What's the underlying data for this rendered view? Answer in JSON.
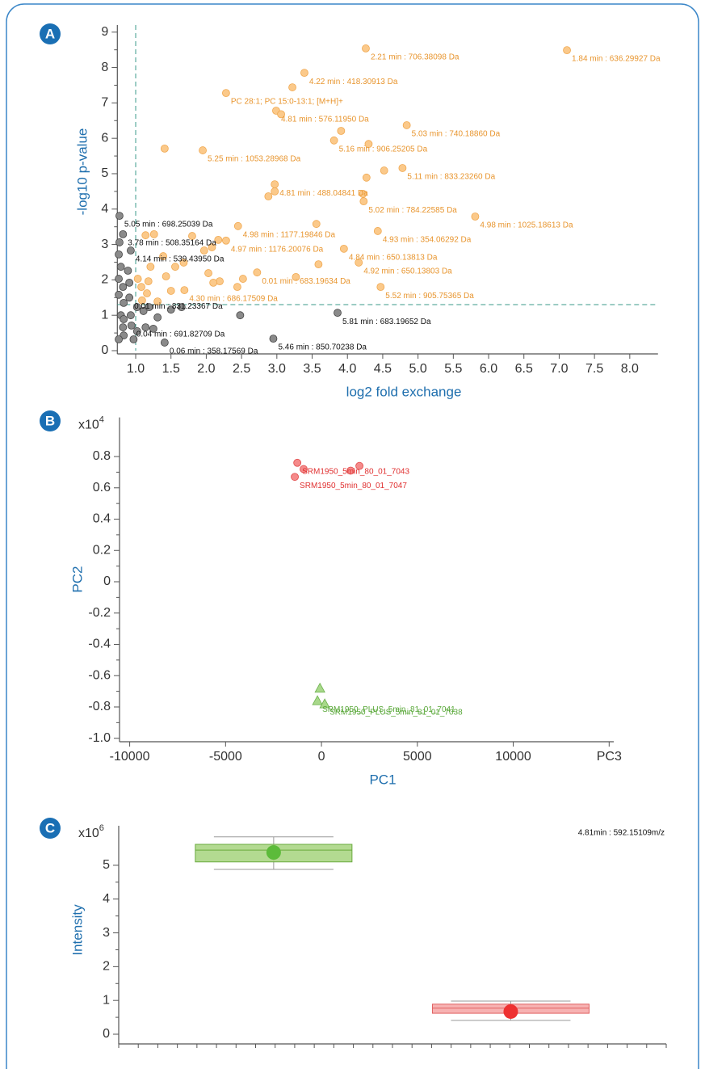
{
  "chart_data": [
    {
      "type": "scatter",
      "panel_label": "A",
      "xlabel": "log2 fold exchange",
      "ylabel": "-log10 p-value",
      "xlim": [
        0.74,
        8.4
      ],
      "ylim": [
        0,
        9.2
      ],
      "xticks": [
        {
          "value": 1,
          "label": "1.0"
        },
        1.5,
        {
          "value": 2,
          "label": "2.0"
        },
        2.5,
        {
          "value": 3,
          "label": "3.0"
        },
        3.5,
        {
          "value": 4,
          "label": "4.0"
        },
        4.5,
        {
          "value": 5,
          "label": "5.0"
        },
        5.5,
        {
          "value": 6,
          "label": "6.0"
        },
        6.5,
        {
          "value": 7,
          "label": "7.0"
        },
        7.5,
        {
          "value": 8,
          "label": "8.0"
        }
      ],
      "yticks": [
        0,
        1,
        2,
        3,
        4,
        5,
        6,
        7,
        8,
        9
      ],
      "thresholds": {
        "x": 1,
        "y": 1.3,
        "color": "#3a9a8a"
      },
      "series": [
        {
          "color": "#fbc98a",
          "stroke": "#f0a850",
          "label_color": "#e8952e",
          "marker": "circle",
          "x": [
            7.11,
            4.26,
            3.39,
            2.28,
            2.99,
            4.84,
            3.81,
            1.95,
            4.78,
            2.97,
            4.23,
            5.81,
            2.45,
            4.43,
            2.28,
            3.95,
            4.16,
            2.72,
            1.69,
            4.47,
            3.22,
            3.91,
            4.3,
            1.41,
            2.88,
            4.22,
            4.52,
            4.27,
            3.56,
            1.26,
            1.14,
            1.8,
            2.17,
            2.08,
            1.97,
            1.68,
            1.56,
            1.43,
            1.18,
            1.08,
            1.16,
            1.31,
            1.5,
            2.03,
            2.19,
            2.44,
            2.52,
            3.27,
            3.59,
            2.1,
            1.39,
            1.21,
            1.03,
            1.09,
            3.06,
            2.97
          ],
          "values": [
            8.49,
            8.54,
            7.85,
            7.28,
            6.78,
            6.37,
            5.94,
            5.66,
            5.16,
            4.7,
            4.22,
            3.79,
            3.52,
            3.38,
            3.11,
            2.88,
            2.49,
            2.21,
            1.71,
            1.8,
            7.44,
            6.21,
            5.84,
            5.71,
            4.36,
            4.43,
            5.09,
            4.89,
            3.58,
            3.29,
            3.26,
            3.24,
            3.13,
            2.92,
            2.83,
            2.49,
            2.37,
            2.1,
            1.96,
            1.8,
            1.62,
            1.39,
            1.69,
            2.19,
            1.96,
            1.8,
            2.03,
            2.08,
            2.44,
            1.92,
            2.67,
            2.37,
            2.03,
            1.42,
            6.68,
            4.5
          ],
          "labels": [
            "1.84 min : 636.29927 Da",
            "2.21 min : 706.38098 Da",
            "4.22 min : 418.30913 Da",
            "PC 28:1; PC 15:0-13:1; [M+H]+",
            "4.81 min : 576.11950 Da",
            "5.03 min : 740.18860 Da",
            "5.16 min : 906.25205 Da",
            "5.25 min : 1053.28968 Da",
            "5.11 min : 833.23260 Da",
            "4.81 min : 488.04841 Da",
            "5.02 min : 784.22585 Da",
            "4.98 min : 1025.18613 Da",
            "4.98 min : 1177.19846 Da",
            "4.93 min : 354.06292 Da",
            "4.97 min : 1176.20076 Da",
            "4.84 min : 650.13813 Da",
            "4.92 min : 650.13803 Da",
            "0.01 min : 683.19634 Da",
            "4.30 min : 686.17509 Da",
            "5.52 min : 905.75365 Da",
            null,
            null,
            null,
            null,
            null,
            null,
            null,
            null,
            null,
            null,
            null,
            null,
            null,
            null,
            null,
            null,
            null,
            null,
            null,
            null,
            null,
            null,
            null,
            null,
            null,
            null,
            null,
            null,
            null,
            null,
            null,
            null,
            null,
            null,
            null,
            null
          ]
        },
        {
          "color": "#8a8a8a",
          "stroke": "#444444",
          "label_color": "#111111",
          "marker": "circle",
          "x": [
            0.77,
            0.82,
            0.93,
            0.91,
            0.94,
            1.41,
            3.86,
            2.95,
            0.77,
            0.76,
            0.79,
            0.76,
            0.82,
            0.76,
            0.83,
            0.89,
            0.91,
            0.79,
            0.83,
            0.93,
            1.02,
            1.11,
            1.19,
            1.31,
            1.02,
            1.14,
            1.25,
            0.83,
            0.76,
            0.97,
            2.48,
            1.65,
            1.5,
            0.82
          ],
          "values": [
            3.81,
            3.29,
            2.83,
            1.5,
            0.71,
            0.23,
            1.07,
            0.34,
            3.06,
            2.72,
            2.37,
            2.03,
            1.8,
            1.58,
            1.35,
            2.26,
            1.92,
            1.0,
            0.89,
            1.0,
            1.23,
            1.12,
            1.23,
            0.94,
            0.55,
            0.66,
            0.62,
            0.43,
            0.32,
            0.32,
            1.0,
            1.23,
            1.16,
            0.66
          ],
          "labels": [
            "5.05 min : 698.25039 Da",
            "3.78 min : 508.35164 Da",
            "4.14 min : 539.43950 Da",
            "0.01 min : 831.23367 Da",
            "0.04 min : 691.82709 Da",
            "0.06 min : 358.17569 Da",
            "5.81 min : 683.19652 Da",
            "5.46 min : 850.70238 Da",
            null,
            null,
            null,
            null,
            null,
            null,
            null,
            null,
            null,
            null,
            null,
            null,
            null,
            null,
            null,
            null,
            null,
            null,
            null,
            null,
            null,
            null,
            null,
            null,
            null,
            null
          ]
        }
      ]
    },
    {
      "type": "scatter",
      "panel_label": "B",
      "xlabel": "PC1",
      "ylabel": "PC2",
      "y_multiplier": {
        "base": "x10",
        "exponent": "4"
      },
      "xlim": [
        -10530,
        15240
      ],
      "ylim": [
        -1.02,
        1.05
      ],
      "xticks": [
        -10000,
        -5000,
        0,
        5000,
        10000,
        {
          "value": 15000,
          "label": "PC3"
        }
      ],
      "yticks": [
        {
          "value": -1,
          "label": "-1.0"
        },
        -0.8,
        -0.6,
        -0.4,
        -0.2,
        0,
        0.2,
        0.4,
        0.6,
        0.8
      ],
      "series": [
        {
          "color": "#f58a8a",
          "stroke": "#e04848",
          "label_color": "#e03030",
          "marker": "circle",
          "x": [
            -1260,
            -930,
            -1390,
            1520,
            1980
          ],
          "values": [
            0.76,
            0.72,
            0.67,
            0.71,
            0.74
          ],
          "labels": [
            "SRM1950_5min_80_01_7043",
            null,
            "SRM1950_5min_80_01_7047",
            null,
            null
          ]
        },
        {
          "color": "#a8d88a",
          "stroke": "#6ab04a",
          "label_color": "#5aa83a",
          "marker": "triangle",
          "x": [
            -80,
            -210,
            170
          ],
          "values": [
            -0.68,
            -0.76,
            -0.78
          ],
          "labels": [
            null,
            "SRM1950_PLUS_5min_81_01_7041",
            "SRM1950_PLUS_5min_81_01_7038"
          ]
        }
      ]
    },
    {
      "type": "box",
      "panel_label": "C",
      "ylabel": "Intensity",
      "y_multiplier": {
        "base": "x10",
        "exponent": "6"
      },
      "annotation": "4.81min : 592.15109m/z",
      "ylim": [
        0,
        6.17
      ],
      "yticks": [
        0,
        1,
        2,
        3,
        4,
        5
      ],
      "categories": [
        null,
        null
      ],
      "boxes": [
        {
          "color": "#a6d47e",
          "stroke": "#6aaa3e",
          "dot": "#5cbb3a",
          "whisker_low": 4.88,
          "q1": 5.1,
          "median": 5.45,
          "q3": 5.62,
          "whisker_high": 5.84,
          "mean": 5.38
        },
        {
          "color": "#f6a4a4",
          "stroke": "#e06060",
          "dot": "#ee3030",
          "whisker_low": 0.41,
          "q1": 0.62,
          "median": 0.77,
          "q3": 0.89,
          "whisker_high": 0.98,
          "mean": 0.67
        }
      ]
    }
  ]
}
